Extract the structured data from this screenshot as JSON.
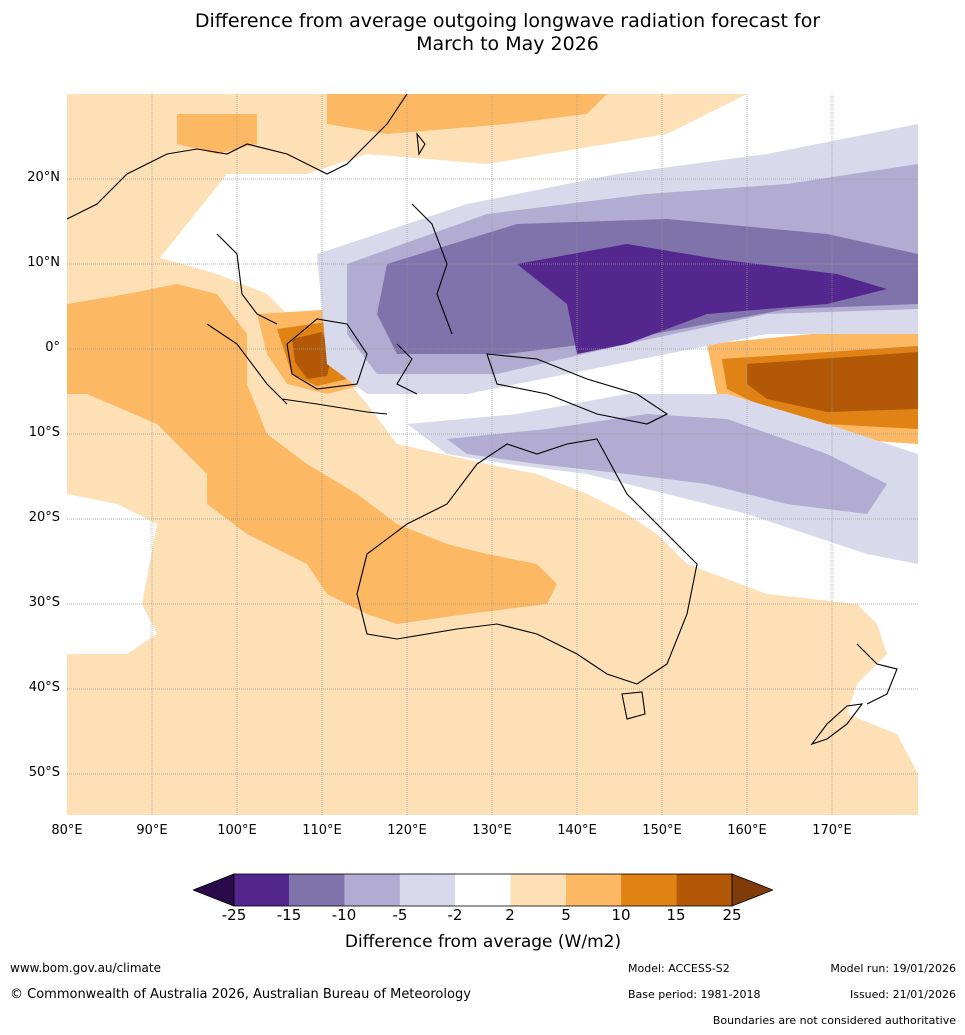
{
  "title": {
    "line1": "Difference from average outgoing longwave radiation forecast for",
    "line2": "March to May 2026"
  },
  "axes": {
    "lat_labels": [
      "20°N",
      "10°N",
      "0°",
      "10°S",
      "20°S",
      "30°S",
      "40°S",
      "50°S"
    ],
    "lon_labels": [
      "80°E",
      "90°E",
      "100°E",
      "110°E",
      "120°E",
      "130°E",
      "140°E",
      "150°E",
      "160°E",
      "170°E"
    ]
  },
  "legend": {
    "ticks": [
      "-25",
      "-15",
      "-10",
      "-5",
      "-2",
      "2",
      "5",
      "10",
      "15",
      "25"
    ],
    "colors": [
      "#2b0a4c",
      "#54278f",
      "#8073ac",
      "#b2abd2",
      "#d8daeb",
      "#ffffff",
      "#fee0b6",
      "#fdb863",
      "#e08214",
      "#b35806",
      "#7f3b08"
    ],
    "title": "Difference from average (W/m2)"
  },
  "footer": {
    "url": "www.bom.gov.au/climate",
    "copyright": "© Commonwealth of Australia 2026, Australian Bureau of Meteorology",
    "model": "Model: ACCESS-S2",
    "model_run": "Model run: 19/01/2026",
    "base_period": "Base period: 1981-2018",
    "issued": "Issued: 21/01/2026",
    "disclaimer": "Boundaries are not considered authoritative"
  }
}
